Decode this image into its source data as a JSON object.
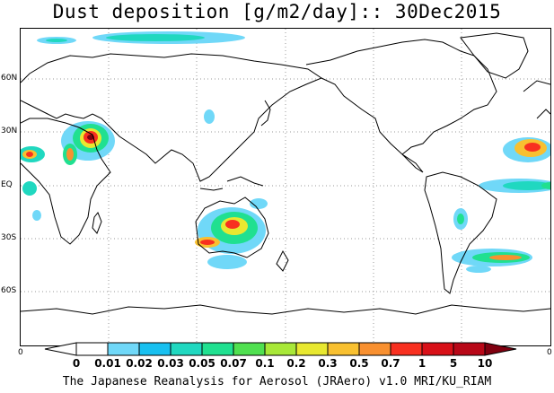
{
  "title": "Dust deposition [g/m2/day]:: 30Dec2015",
  "lat_labels": [
    "60N",
    "30N",
    "EQ",
    "30S",
    "60S"
  ],
  "edge_labels": {
    "left": "0",
    "right": "0"
  },
  "colorbar": {
    "labels": [
      "0",
      "0.01",
      "0.02",
      "0.03",
      "0.05",
      "0.07",
      "0.1",
      "0.2",
      "0.3",
      "0.5",
      "0.7",
      "1",
      "5",
      "10"
    ],
    "colors": [
      "#ffffff",
      "#ffffff",
      "#70d8f8",
      "#18c0f0",
      "#20d8c0",
      "#20e090",
      "#50e050",
      "#a8e838",
      "#e8e830",
      "#f8c030",
      "#f89030",
      "#f83020",
      "#d81018",
      "#b80818",
      "#800010"
    ]
  },
  "footer": "The Japanese Reanalysis for Aerosol (JRAero) v1.0 MRI/KU_RIAM"
}
